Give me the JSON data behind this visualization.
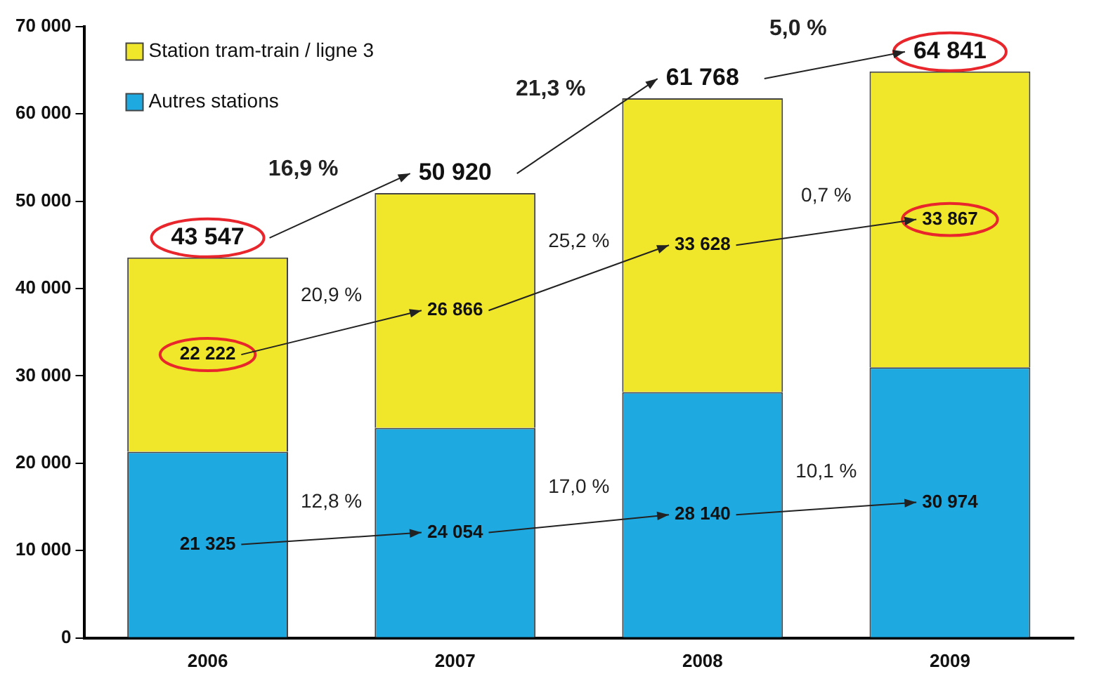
{
  "chart_data": {
    "type": "bar",
    "stacked": true,
    "categories": [
      "2006",
      "2007",
      "2008",
      "2009"
    ],
    "series": [
      {
        "name": "Autres stations",
        "color": "#1fa9e1",
        "values": [
          21325,
          24054,
          28140,
          30974
        ],
        "value_labels": [
          "21 325",
          "24 054",
          "28 140",
          "30 974"
        ]
      },
      {
        "name": "Station tram-train / ligne 3",
        "color": "#f0e62a",
        "values": [
          22222,
          26866,
          33628,
          33867
        ],
        "value_labels": [
          "22 222",
          "26 866",
          "33 628",
          "33 867"
        ]
      }
    ],
    "totals": [
      "43 547",
      "50 920",
      "61 768",
      "64 841"
    ],
    "ylim": [
      0,
      70000
    ],
    "yticks": [
      {
        "value": 0,
        "label": "0"
      },
      {
        "value": 10000,
        "label": "10 000"
      },
      {
        "value": 20000,
        "label": "20 000"
      },
      {
        "value": 30000,
        "label": "30 000"
      },
      {
        "value": 40000,
        "label": "40 000"
      },
      {
        "value": 50000,
        "label": "50 000"
      },
      {
        "value": 60000,
        "label": "60 000"
      },
      {
        "value": 70000,
        "label": "70 000"
      }
    ],
    "annotations": [
      "16,9 %",
      "20,9 %",
      "12,8 %",
      "21,3 %",
      "25,2 %",
      "17,0 %",
      "5,0 %",
      "0,7 %",
      "10,1 %"
    ],
    "grid": false,
    "legend": "top left"
  }
}
